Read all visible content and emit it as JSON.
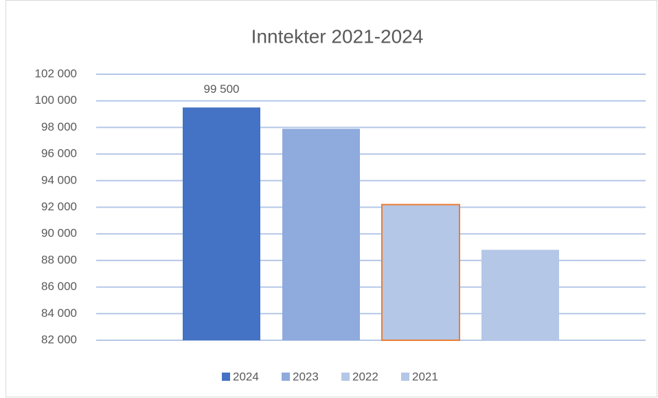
{
  "chart_data": {
    "type": "bar",
    "title": "Inntekter 2021-2024",
    "categories": [
      null
    ],
    "series": [
      {
        "name": "2024",
        "color": "#4472c4",
        "values": [
          99500
        ],
        "value_labels": [
          "99 500"
        ]
      },
      {
        "name": "2023",
        "color": "#8faadc",
        "values": [
          97900
        ]
      },
      {
        "name": "2022",
        "color": "#b4c7e7",
        "edgecolor": "#ed7d31",
        "values": [
          92200
        ]
      },
      {
        "name": "2021",
        "color": "#b4c7e7",
        "values": [
          88800
        ]
      }
    ],
    "ylim": [
      82000,
      102000
    ],
    "yticks": [
      {
        "value": 82000,
        "label": "82 000"
      },
      {
        "value": 84000,
        "label": "84 000"
      },
      {
        "value": 86000,
        "label": "86 000"
      },
      {
        "value": 88000,
        "label": "88 000"
      },
      {
        "value": 90000,
        "label": "90 000"
      },
      {
        "value": 92000,
        "label": "92 000"
      },
      {
        "value": 94000,
        "label": "94 000"
      },
      {
        "value": 96000,
        "label": "96 000"
      },
      {
        "value": 98000,
        "label": "98 000"
      },
      {
        "value": 100000,
        "label": "100 000"
      },
      {
        "value": 102000,
        "label": "102 000"
      }
    ],
    "grid": true,
    "legend": "bottom"
  }
}
